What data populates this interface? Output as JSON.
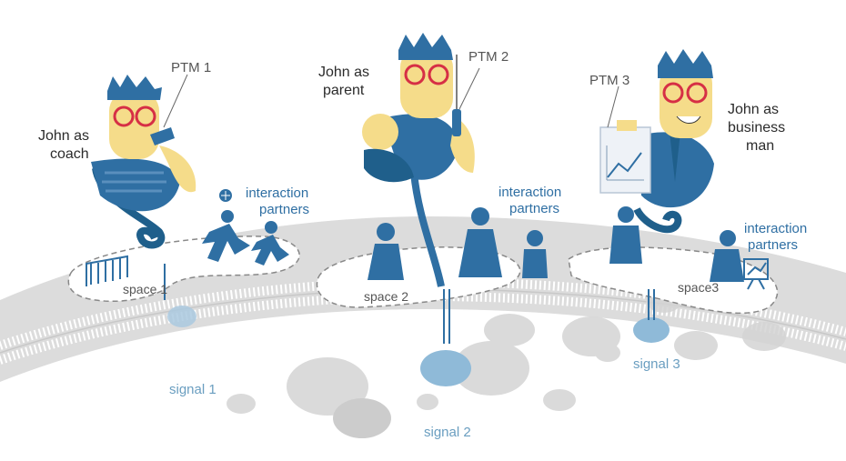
{
  "colors": {
    "accent_blue": "#2f6fa3",
    "dark_blue": "#1f5f8b",
    "skin": "#f5dc8a",
    "glasses": "#d62f45",
    "membrane": "#d6d6d6",
    "signal": "#8fbad8"
  },
  "people": [
    {
      "role_line1": "John as",
      "role_line2": "coach",
      "ptm": "PTM 1"
    },
    {
      "role_line1": "John as",
      "role_line2": "parent",
      "ptm": "PTM 2"
    },
    {
      "role_line1": "John as",
      "role_line2": "business",
      "role_line3": "man",
      "ptm": "PTM 3"
    }
  ],
  "interaction_partners": {
    "line1": "interaction",
    "line2": "partners"
  },
  "spaces": [
    "space 1",
    "space 2",
    "space3"
  ],
  "signals": [
    "signal 1",
    "signal 2",
    "signal 3"
  ],
  "icons": [
    "soccer-goal-icon",
    "soccer-ball-icon",
    "whistle-icon",
    "baby-bottle-icon",
    "chart-clipboard-icon",
    "easel-chart-icon"
  ]
}
